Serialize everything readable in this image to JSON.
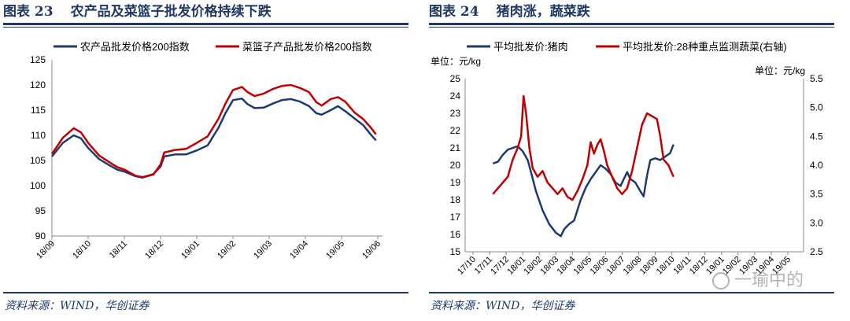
{
  "left": {
    "figure_label": "图表 23",
    "figure_title": "农产品及菜篮子批发价格持续下跌",
    "source": "资料来源：WIND，华创证券"
  },
  "right": {
    "figure_label": "图表 24",
    "figure_title": "猪肉涨，蔬菜跌",
    "source": "资料来源：WIND，华创证券"
  },
  "watermark": "一瑜中的",
  "chart_data": [
    {
      "type": "line",
      "x_tick_labels": [
        "18/09",
        "18/10",
        "18/11",
        "18/12",
        "19/01",
        "19/02",
        "19/03",
        "19/04",
        "19/05",
        "19/06"
      ],
      "ylim": [
        90,
        125
      ],
      "y_ticks": [
        90,
        95,
        100,
        105,
        110,
        115,
        120,
        125
      ],
      "legend_position": "top",
      "series": [
        {
          "name": "农产品批发价格200指数",
          "color": "#1f3a6e",
          "points": [
            [
              0,
              105.8
            ],
            [
              0.3,
              108.5
            ],
            [
              0.6,
              110.0
            ],
            [
              0.8,
              109.4
            ],
            [
              1.0,
              107.5
            ],
            [
              1.3,
              105.3
            ],
            [
              1.6,
              104.0
            ],
            [
              1.8,
              103.2
            ],
            [
              2.0,
              102.8
            ],
            [
              2.3,
              101.9
            ],
            [
              2.5,
              101.6
            ],
            [
              2.8,
              102.3
            ],
            [
              3.0,
              103.8
            ],
            [
              3.1,
              105.8
            ],
            [
              3.4,
              106.2
            ],
            [
              3.7,
              106.2
            ],
            [
              4.0,
              107.0
            ],
            [
              4.3,
              108.0
            ],
            [
              4.6,
              111.5
            ],
            [
              4.8,
              114.5
            ],
            [
              5.0,
              117.0
            ],
            [
              5.25,
              117.3
            ],
            [
              5.4,
              116.2
            ],
            [
              5.6,
              115.4
            ],
            [
              5.85,
              115.5
            ],
            [
              6.1,
              116.3
            ],
            [
              6.35,
              117.0
            ],
            [
              6.6,
              117.2
            ],
            [
              6.85,
              116.7
            ],
            [
              7.1,
              115.8
            ],
            [
              7.3,
              114.4
            ],
            [
              7.45,
              114.1
            ],
            [
              7.7,
              115.0
            ],
            [
              7.9,
              115.8
            ],
            [
              8.1,
              114.8
            ],
            [
              8.35,
              113.4
            ],
            [
              8.6,
              112.0
            ],
            [
              8.8,
              110.2
            ],
            [
              8.95,
              109.0
            ]
          ]
        },
        {
          "name": "菜篮子产品批发价格200指数",
          "color": "#c00000",
          "points": [
            [
              0,
              106.3
            ],
            [
              0.3,
              109.5
            ],
            [
              0.6,
              111.4
            ],
            [
              0.8,
              110.6
            ],
            [
              1.0,
              108.5
            ],
            [
              1.3,
              106.0
            ],
            [
              1.6,
              104.6
            ],
            [
              1.8,
              103.7
            ],
            [
              2.0,
              103.2
            ],
            [
              2.3,
              102.0
            ],
            [
              2.5,
              101.7
            ],
            [
              2.8,
              102.2
            ],
            [
              3.0,
              104.2
            ],
            [
              3.1,
              106.6
            ],
            [
              3.4,
              107.1
            ],
            [
              3.7,
              107.3
            ],
            [
              4.0,
              108.5
            ],
            [
              4.3,
              109.8
            ],
            [
              4.6,
              113.3
            ],
            [
              4.8,
              116.4
            ],
            [
              5.0,
              119.0
            ],
            [
              5.25,
              119.6
            ],
            [
              5.4,
              118.6
            ],
            [
              5.6,
              117.8
            ],
            [
              5.85,
              118.3
            ],
            [
              6.1,
              119.2
            ],
            [
              6.35,
              119.8
            ],
            [
              6.6,
              120.0
            ],
            [
              6.85,
              119.4
            ],
            [
              7.1,
              118.6
            ],
            [
              7.3,
              116.6
            ],
            [
              7.45,
              115.9
            ],
            [
              7.7,
              117.2
            ],
            [
              7.9,
              117.6
            ],
            [
              8.1,
              116.7
            ],
            [
              8.35,
              114.6
            ],
            [
              8.6,
              113.2
            ],
            [
              8.8,
              111.6
            ],
            [
              8.95,
              110.2
            ]
          ]
        }
      ]
    },
    {
      "type": "line",
      "unit_left": "单位：元/kg",
      "unit_right": "单位：元/kg",
      "x_tick_labels": [
        "17/10",
        "17/11",
        "17/12",
        "18/01",
        "18/02",
        "18/03",
        "18/04",
        "18/05",
        "18/06",
        "18/07",
        "18/08",
        "18/09",
        "18/10",
        "18/11",
        "18/12",
        "19/01",
        "19/02",
        "19/03",
        "19/04",
        "19/05"
      ],
      "ylim_left": [
        15,
        25
      ],
      "y_ticks_left": [
        15,
        16,
        17,
        18,
        19,
        20,
        21,
        22,
        23,
        24,
        25
      ],
      "ylim_right": [
        2.5,
        5.5
      ],
      "y_ticks_right": [
        "2.5",
        "3.0",
        "3.5",
        "4.0",
        "4.5",
        "5.0",
        "5.5"
      ],
      "legend_position": "top",
      "series": [
        {
          "name": "平均批发价:猪肉",
          "axis": "left",
          "color": "#1f3a6e",
          "points": [
            [
              1.2,
              20.1
            ],
            [
              1.5,
              20.2
            ],
            [
              1.8,
              20.6
            ],
            [
              2.1,
              20.9
            ],
            [
              2.4,
              21.0
            ],
            [
              2.7,
              21.1
            ],
            [
              3.0,
              20.8
            ],
            [
              3.3,
              20.3
            ],
            [
              3.5,
              19.6
            ],
            [
              3.8,
              18.5
            ],
            [
              4.2,
              17.4
            ],
            [
              4.6,
              16.6
            ],
            [
              5.0,
              16.1
            ],
            [
              5.3,
              15.9
            ],
            [
              5.5,
              16.3
            ],
            [
              5.8,
              16.6
            ],
            [
              6.1,
              16.8
            ],
            [
              6.3,
              17.4
            ],
            [
              6.5,
              18.0
            ],
            [
              6.8,
              18.7
            ],
            [
              7.1,
              19.2
            ],
            [
              7.4,
              19.6
            ],
            [
              7.7,
              20.0
            ],
            [
              8.0,
              19.8
            ],
            [
              8.3,
              19.5
            ],
            [
              8.6,
              19.0
            ],
            [
              8.9,
              18.8
            ],
            [
              9.1,
              19.2
            ],
            [
              9.3,
              19.6
            ],
            [
              9.5,
              19.2
            ],
            [
              9.8,
              19.0
            ],
            [
              10.1,
              18.5
            ],
            [
              10.3,
              18.2
            ],
            [
              10.5,
              19.4
            ],
            [
              10.7,
              20.3
            ],
            [
              11.0,
              20.4
            ],
            [
              11.3,
              20.3
            ],
            [
              11.6,
              20.5
            ],
            [
              11.9,
              20.7
            ],
            [
              12.1,
              21.2
            ]
          ]
        },
        {
          "name": "平均批发价:28种重点监测蔬菜(右轴)",
          "axis": "right",
          "color": "#c00000",
          "points": [
            [
              1.2,
              3.5
            ],
            [
              1.5,
              3.6
            ],
            [
              1.8,
              3.7
            ],
            [
              2.1,
              3.8
            ],
            [
              2.4,
              4.1
            ],
            [
              2.7,
              4.3
            ],
            [
              2.9,
              4.5
            ],
            [
              3.05,
              5.2
            ],
            [
              3.2,
              4.9
            ],
            [
              3.4,
              4.3
            ],
            [
              3.6,
              3.95
            ],
            [
              3.9,
              3.8
            ],
            [
              4.2,
              3.9
            ],
            [
              4.5,
              3.7
            ],
            [
              4.8,
              3.6
            ],
            [
              5.1,
              3.5
            ],
            [
              5.4,
              3.6
            ],
            [
              5.7,
              3.45
            ],
            [
              6.0,
              3.4
            ],
            [
              6.3,
              3.55
            ],
            [
              6.6,
              3.75
            ],
            [
              6.9,
              4.0
            ],
            [
              7.1,
              4.4
            ],
            [
              7.3,
              4.2
            ],
            [
              7.5,
              4.35
            ],
            [
              7.7,
              4.45
            ],
            [
              7.9,
              4.25
            ],
            [
              8.1,
              4.0
            ],
            [
              8.4,
              3.8
            ],
            [
              8.7,
              3.6
            ],
            [
              9.0,
              3.5
            ],
            [
              9.3,
              3.6
            ],
            [
              9.6,
              3.9
            ],
            [
              9.9,
              4.3
            ],
            [
              10.2,
              4.7
            ],
            [
              10.5,
              4.9
            ],
            [
              10.8,
              4.85
            ],
            [
              11.1,
              4.8
            ],
            [
              11.3,
              4.5
            ],
            [
              11.5,
              4.1
            ],
            [
              11.8,
              4.0
            ],
            [
              12.1,
              3.8
            ]
          ]
        }
      ]
    }
  ]
}
